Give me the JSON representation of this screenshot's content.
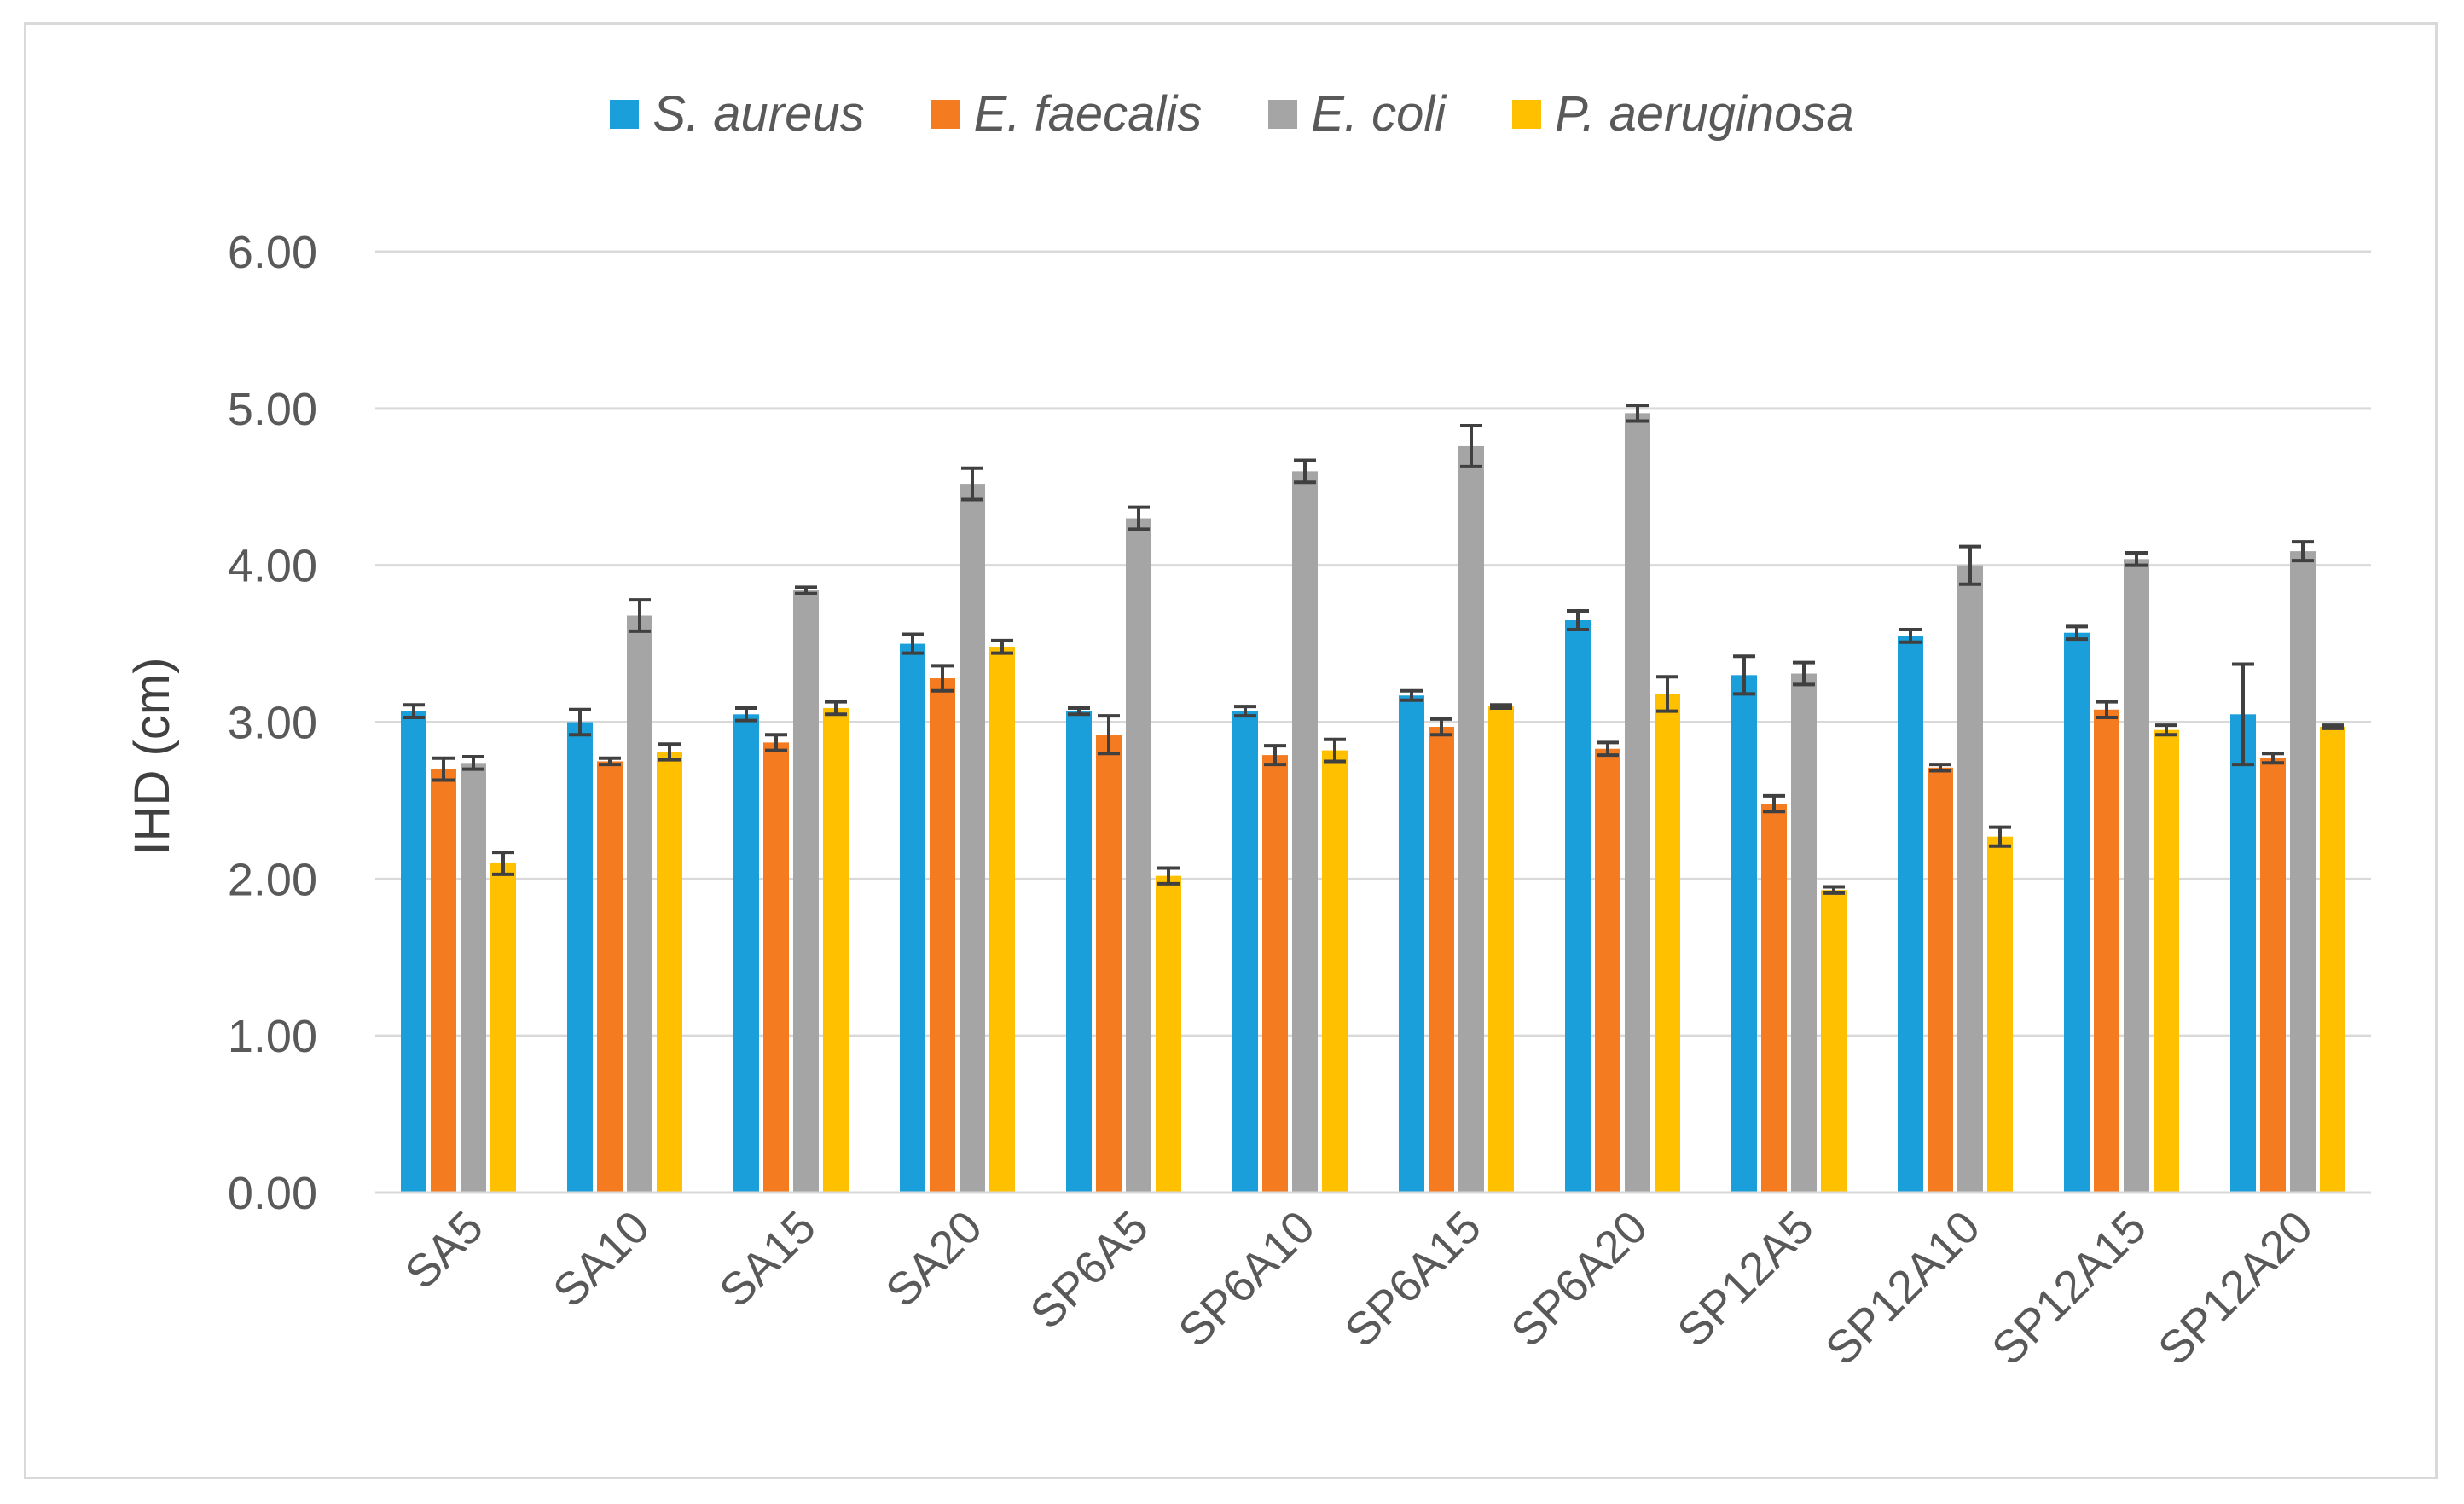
{
  "chart_data": {
    "type": "bar",
    "title": "",
    "xlabel": "",
    "ylabel": "IHD (cm)",
    "ylim": [
      0,
      6
    ],
    "yticks": [
      "0.00",
      "1.00",
      "2.00",
      "3.00",
      "4.00",
      "5.00",
      "6.00"
    ],
    "grid": true,
    "legend_position": "top",
    "categories": [
      "SA5",
      "SA10",
      "SA15",
      "SA20",
      "SP6A5",
      "SP6A10",
      "SP6A15",
      "SP6A20",
      "SP12A5",
      "SP12A10",
      "SP12A15",
      "SP12A20"
    ],
    "series": [
      {
        "name": "S. aureus",
        "color": "#1a9fdb",
        "values": [
          3.07,
          3.0,
          3.05,
          3.5,
          3.07,
          3.07,
          3.17,
          3.65,
          3.3,
          3.55,
          3.57,
          3.05
        ],
        "errors": [
          0.04,
          0.08,
          0.04,
          0.06,
          0.02,
          0.03,
          0.03,
          0.06,
          0.12,
          0.04,
          0.04,
          0.32
        ]
      },
      {
        "name": "E. faecalis",
        "color": "#f47b20",
        "values": [
          2.7,
          2.75,
          2.87,
          3.28,
          2.92,
          2.79,
          2.97,
          2.83,
          2.48,
          2.71,
          3.08,
          2.77
        ],
        "errors": [
          0.07,
          0.02,
          0.05,
          0.08,
          0.12,
          0.06,
          0.05,
          0.04,
          0.05,
          0.02,
          0.05,
          0.03
        ]
      },
      {
        "name": "E. coli",
        "color": "#a5a5a5",
        "values": [
          2.74,
          3.68,
          3.84,
          4.52,
          4.3,
          4.6,
          4.76,
          4.97,
          3.31,
          4.0,
          4.04,
          4.09
        ],
        "errors": [
          0.04,
          0.1,
          0.02,
          0.1,
          0.07,
          0.07,
          0.13,
          0.05,
          0.07,
          0.12,
          0.04,
          0.06
        ]
      },
      {
        "name": "P. aeruginosa",
        "color": "#ffc000",
        "values": [
          2.1,
          2.81,
          3.09,
          3.48,
          2.02,
          2.82,
          3.1,
          3.18,
          1.93,
          2.27,
          2.95,
          2.97
        ],
        "errors": [
          0.07,
          0.05,
          0.04,
          0.04,
          0.05,
          0.07,
          0.01,
          0.11,
          0.02,
          0.06,
          0.03,
          0.01
        ]
      }
    ]
  }
}
